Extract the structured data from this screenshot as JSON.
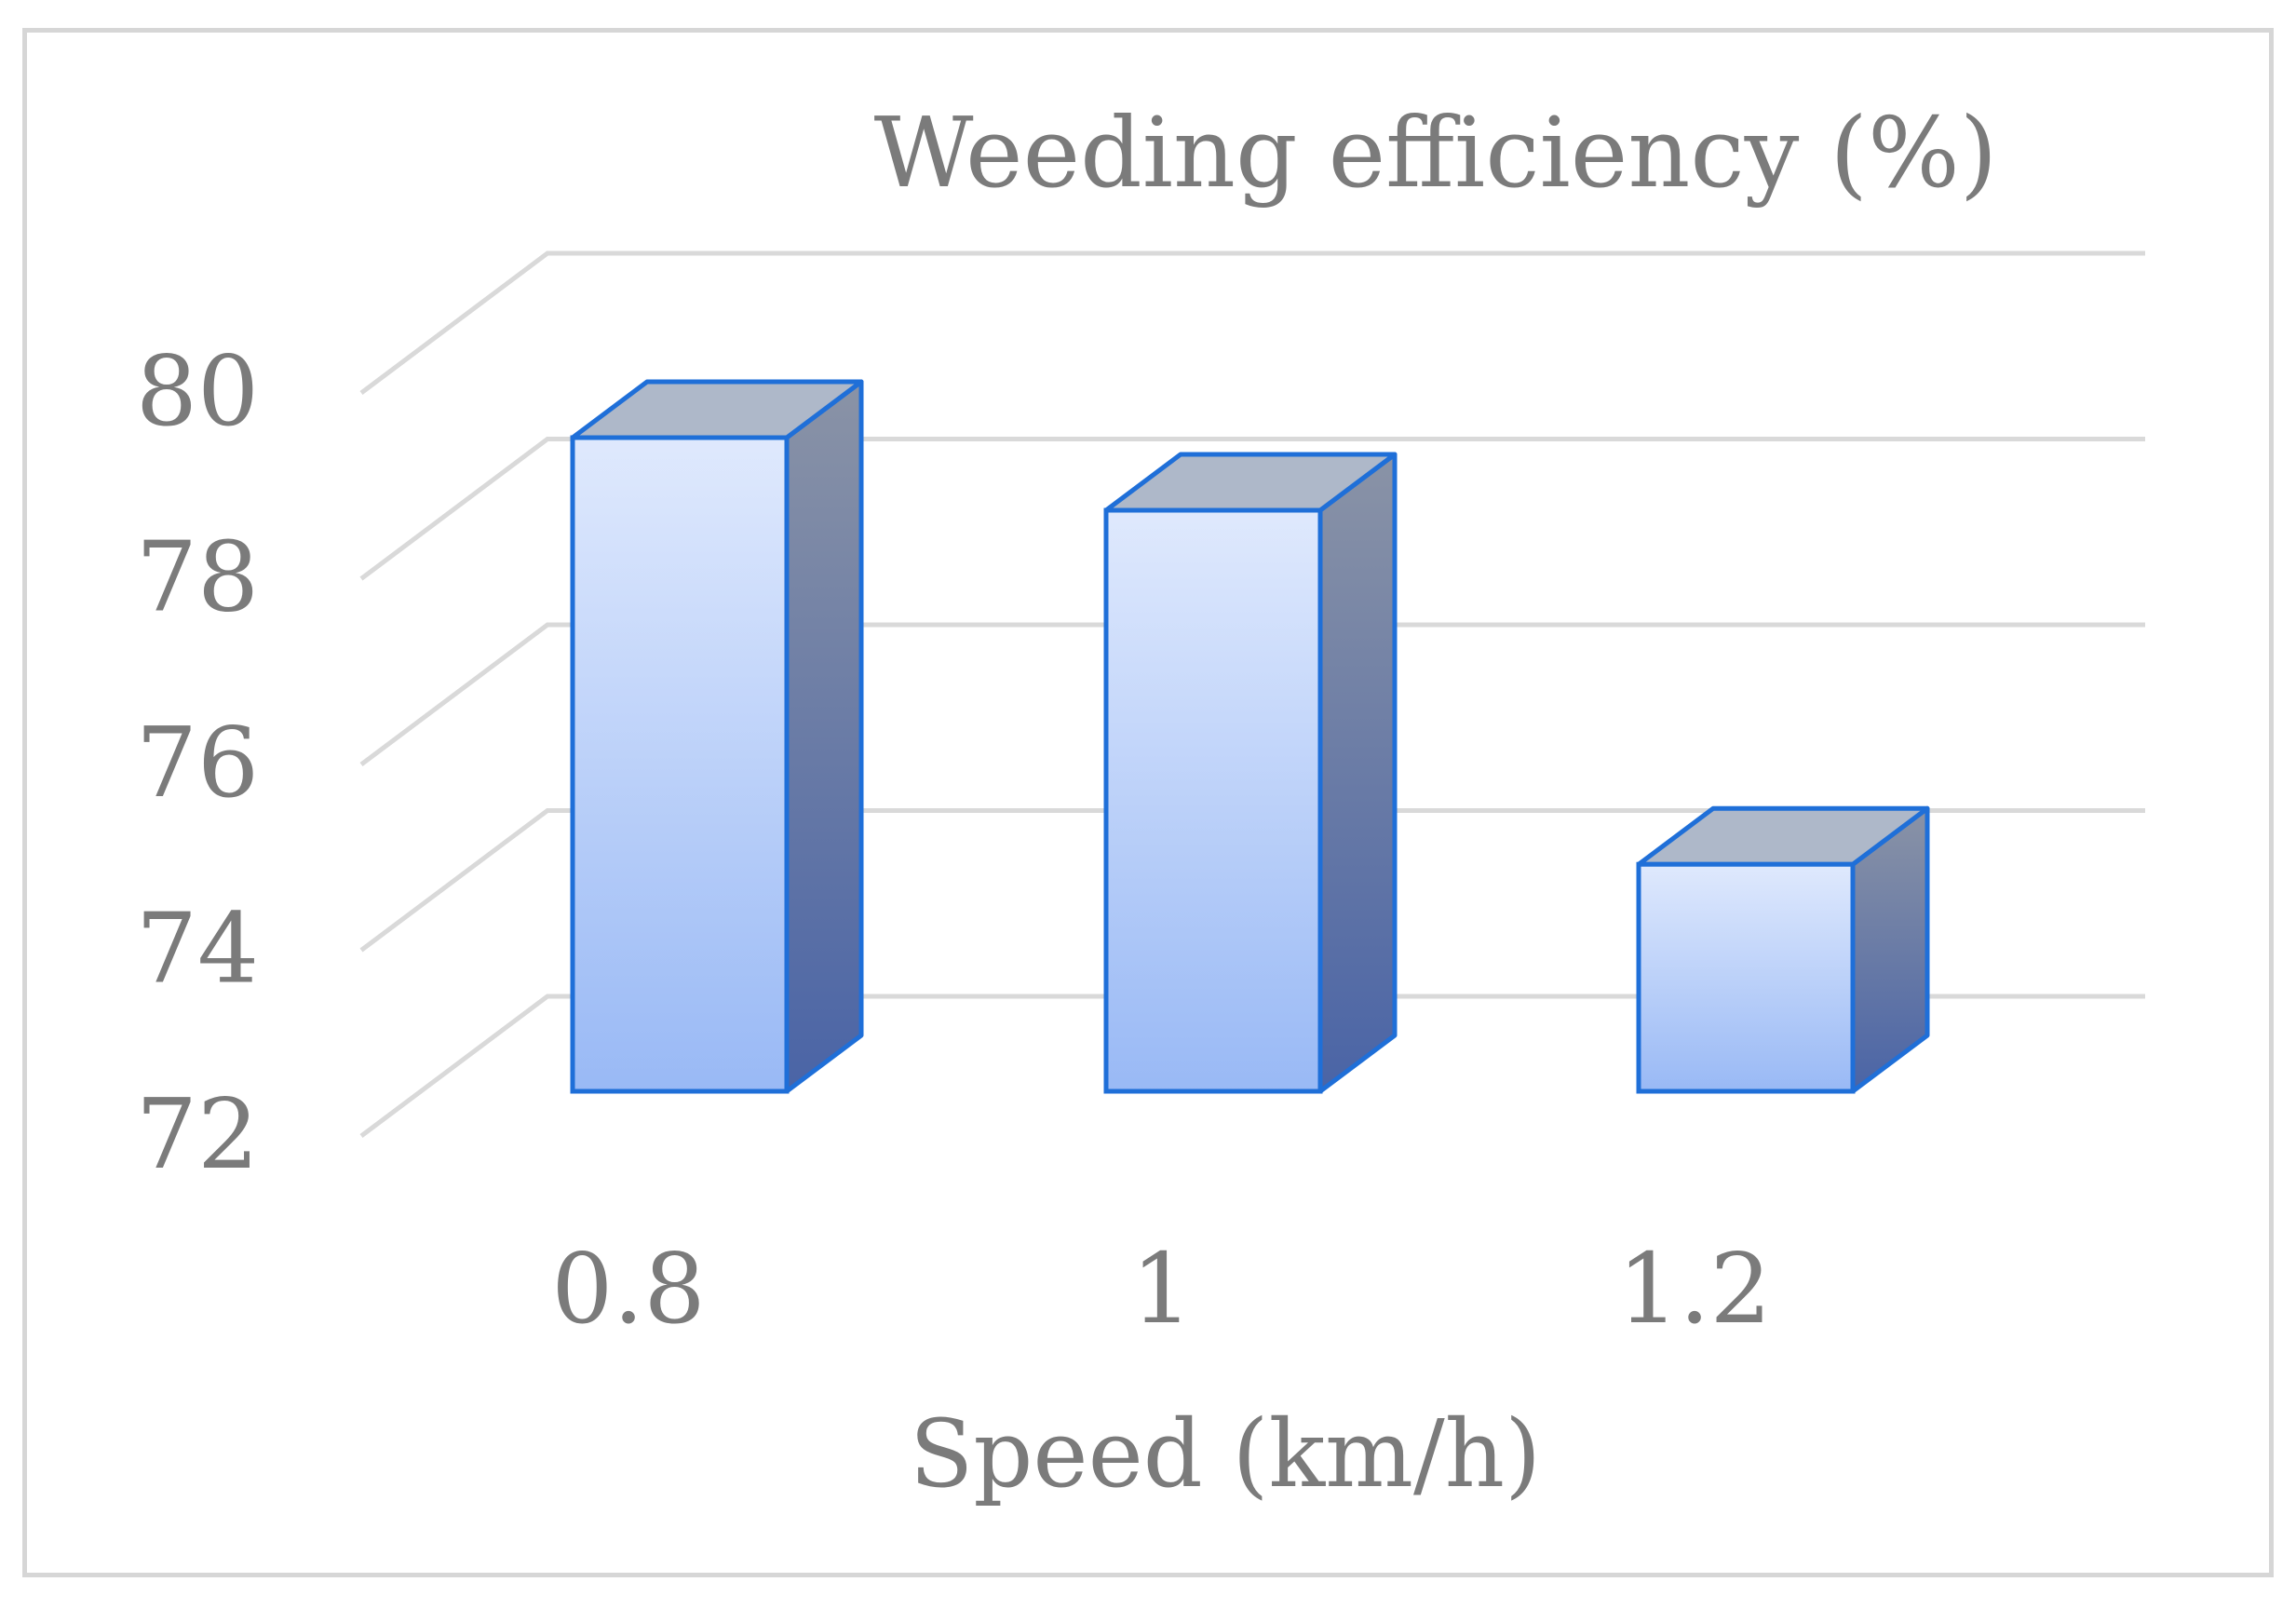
{
  "chart_data": {
    "type": "bar",
    "title": "Weeding efficiency (%)",
    "xlabel": "Speed (km/h)",
    "ylabel": "",
    "categories": [
      "0.8",
      "1",
      "1.2"
    ],
    "values": [
      79.2,
      78.4,
      74.5
    ],
    "ylim": [
      72,
      80
    ],
    "yticks": [
      72,
      74,
      76,
      78,
      80
    ],
    "grid": true,
    "legend": "none",
    "style": "3d-column",
    "colors": {
      "bar_front_top": "#dfe9fd",
      "bar_front_bottom": "#99b9f5",
      "bar_side_top": "#8a93a6",
      "bar_side_bottom": "#4a64a6",
      "bar_top": "#aeb8c9",
      "bar_edge": "#1f6fd8",
      "grid": "#d9d9d9",
      "text": "#7b7b7b",
      "frame": "#d6d6d6"
    }
  }
}
